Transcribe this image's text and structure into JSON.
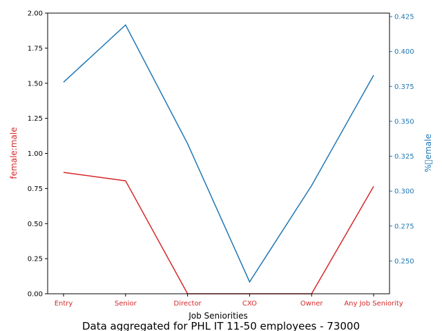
{
  "chart_data": {
    "type": "line",
    "xlabel": "Job Seniorities",
    "caption": "Data aggregated for PHL IT 11-50 employees - 73000",
    "categories": [
      "Entry",
      "Senior",
      "Director",
      "CXO",
      "Owner",
      "Any Job Seniority"
    ],
    "left_axis": {
      "label": "female:male",
      "ylim": [
        0,
        2.0
      ],
      "ticks": [
        "0.00",
        "0.25",
        "0.50",
        "0.75",
        "1.00",
        "1.25",
        "1.50",
        "1.75",
        "2.00"
      ],
      "color": "#d62728"
    },
    "right_axis": {
      "label": "%\u0000emale",
      "ylim": [
        0.2265,
        0.4275
      ],
      "ticks": [
        "0.250",
        "0.275",
        "0.300",
        "0.325",
        "0.350",
        "0.375",
        "0.400",
        "0.425"
      ],
      "color": "#1f77b4"
    },
    "series": [
      {
        "axis": "left",
        "color": "#d62728",
        "values": [
          0.865,
          0.805,
          0.0,
          0.0,
          0.0,
          0.765
        ]
      },
      {
        "axis": "right",
        "color": "#1f77b4",
        "values": [
          0.378,
          0.419,
          0.334,
          0.235,
          0.304,
          0.383
        ]
      }
    ]
  }
}
